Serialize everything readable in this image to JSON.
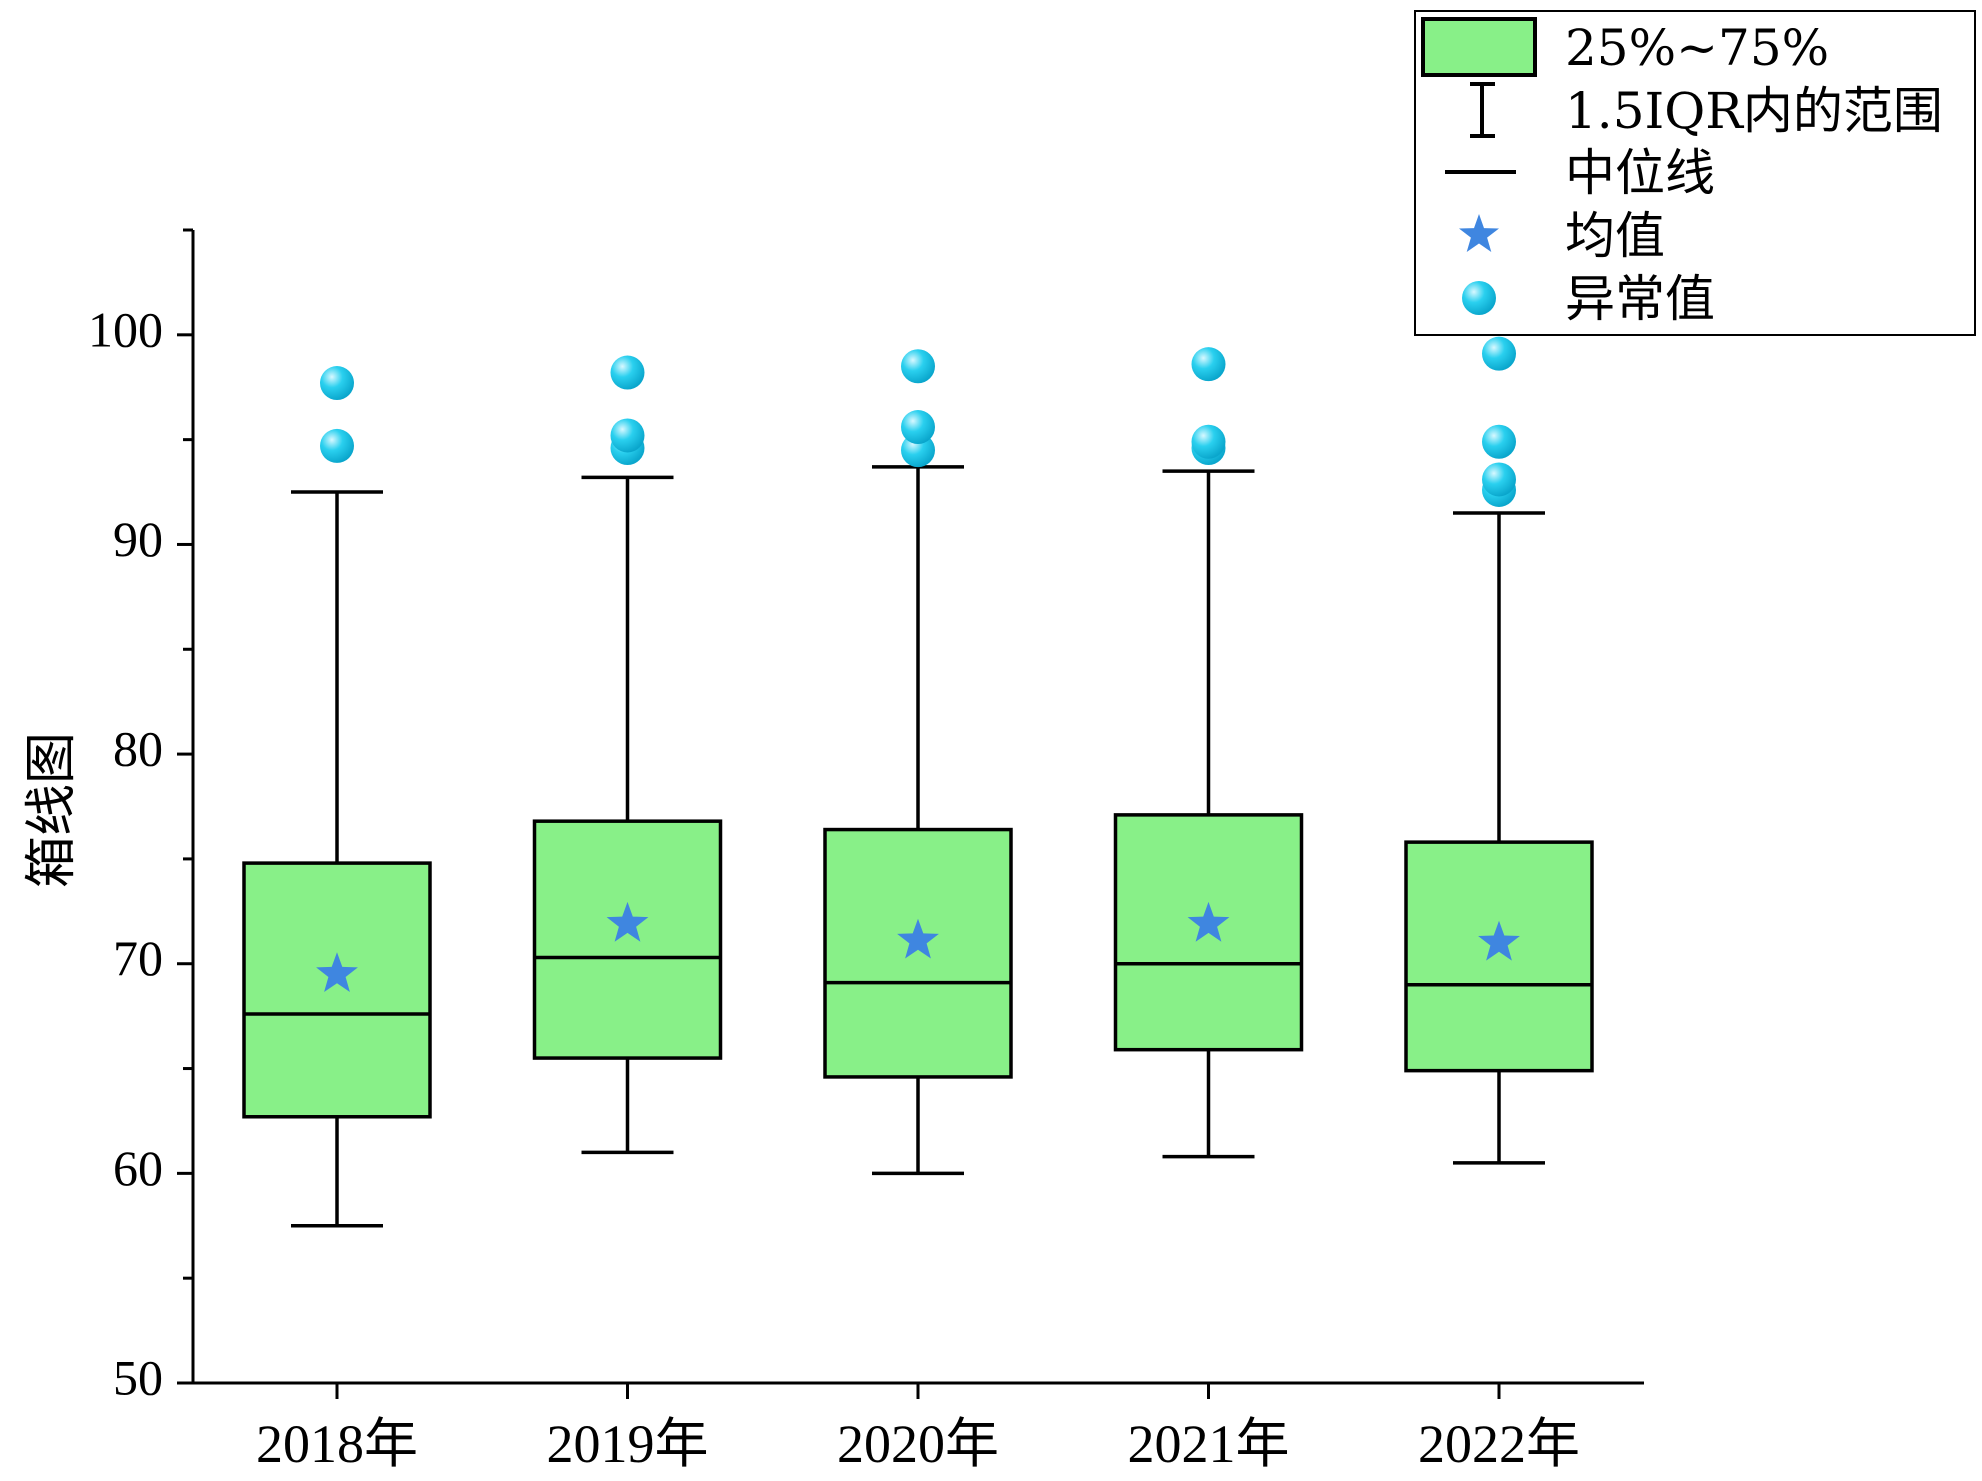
{
  "chart_data": {
    "type": "box",
    "ylabel": "箱线图",
    "ylim": [
      50,
      105
    ],
    "yticks": [
      50,
      60,
      70,
      80,
      90,
      100
    ],
    "categories": [
      "2018年",
      "2019年",
      "2020年",
      "2021年",
      "2022年"
    ],
    "boxes": [
      {
        "whisker_low": 57.5,
        "q1": 62.7,
        "median": 67.6,
        "q3": 74.8,
        "whisker_high": 92.5,
        "mean": 69.5,
        "outliers": [
          94.7,
          97.7
        ]
      },
      {
        "whisker_low": 61.0,
        "q1": 65.5,
        "median": 70.3,
        "q3": 76.8,
        "whisker_high": 93.2,
        "mean": 71.9,
        "outliers": [
          94.6,
          95.2,
          98.2
        ]
      },
      {
        "whisker_low": 60.0,
        "q1": 64.6,
        "median": 69.1,
        "q3": 76.4,
        "whisker_high": 93.7,
        "mean": 71.1,
        "outliers": [
          94.5,
          95.6,
          98.5
        ]
      },
      {
        "whisker_low": 60.8,
        "q1": 65.9,
        "median": 70.0,
        "q3": 77.1,
        "whisker_high": 93.5,
        "mean": 71.9,
        "outliers": [
          94.6,
          94.9,
          98.6
        ]
      },
      {
        "whisker_low": 60.5,
        "q1": 64.9,
        "median": 69.0,
        "q3": 75.8,
        "whisker_high": 91.5,
        "mean": 71.0,
        "outliers": [
          92.6,
          93.1,
          94.9,
          99.1
        ]
      }
    ],
    "legend": {
      "position": "top-right",
      "items": [
        "25%~75%",
        "1.5IQR内的范围",
        "中位线",
        "均值",
        "异常值"
      ]
    },
    "colors": {
      "box_fill": "#88f088",
      "mean_star": "#3f86e0",
      "outlier": "#18c8e8",
      "outlier_highlight": "#c8f4ff",
      "line": "#000000"
    },
    "grid": false
  }
}
